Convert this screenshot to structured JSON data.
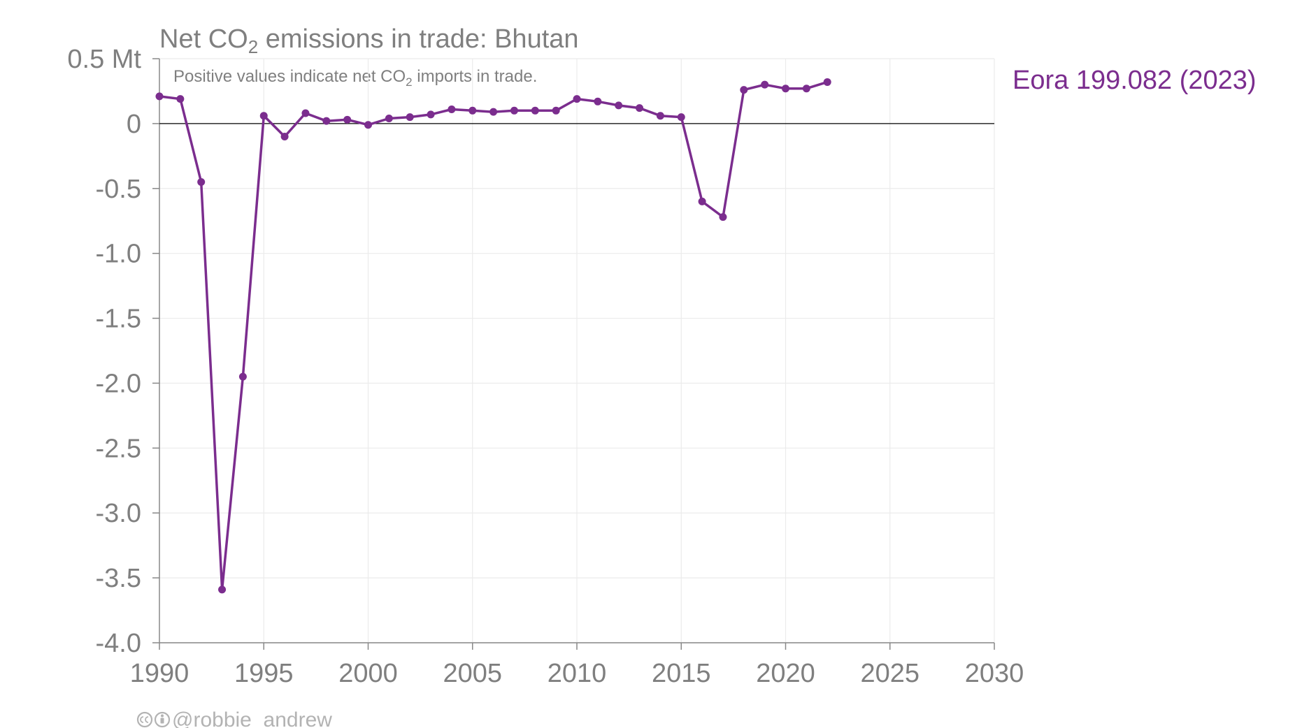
{
  "chart_data": {
    "type": "line",
    "title_prefix": "Net CO",
    "title_sub": "2",
    "title_suffix": " emissions in trade: Bhutan",
    "subtitle_prefix": "Positive values indicate net CO",
    "subtitle_sub": "2",
    "subtitle_suffix": " imports in trade.",
    "y_unit": "Mt",
    "ylim": [
      -4.0,
      0.5
    ],
    "yticks": [
      0.5,
      0,
      -0.5,
      -1.0,
      -1.5,
      -2.0,
      -2.5,
      -3.0,
      -3.5,
      -4.0
    ],
    "ytick_labels": [
      "0.5 Mt",
      "0",
      "-0.5",
      "-1.0",
      "-1.5",
      "-2.0",
      "-2.5",
      "-3.0",
      "-3.5",
      "-4.0"
    ],
    "xlim": [
      1990,
      2030
    ],
    "xticks": [
      1990,
      1995,
      2000,
      2005,
      2010,
      2015,
      2020,
      2025,
      2030
    ],
    "xtick_labels": [
      "1990",
      "1995",
      "2000",
      "2005",
      "2010",
      "2015",
      "2020",
      "2025",
      "2030"
    ],
    "grid": true,
    "series": [
      {
        "name": "Eora 199.082 (2023)",
        "color": "#7b2d8e",
        "x": [
          1990,
          1991,
          1992,
          1993,
          1994,
          1995,
          1996,
          1997,
          1998,
          1999,
          2000,
          2001,
          2002,
          2003,
          2004,
          2005,
          2006,
          2007,
          2008,
          2009,
          2010,
          2011,
          2012,
          2013,
          2014,
          2015,
          2016,
          2017,
          2018,
          2019,
          2020,
          2021,
          2022
        ],
        "y": [
          0.21,
          0.19,
          -0.45,
          -3.59,
          -1.95,
          0.06,
          -0.1,
          0.08,
          0.02,
          0.03,
          -0.01,
          0.04,
          0.05,
          0.07,
          0.11,
          0.1,
          0.09,
          0.1,
          0.1,
          0.1,
          0.19,
          0.17,
          0.14,
          0.12,
          0.06,
          0.05,
          -0.6,
          -0.72,
          0.26,
          0.3,
          0.27,
          0.27,
          0.32
        ]
      }
    ]
  },
  "credit": {
    "icons": [
      "creative-commons-icon",
      "attribution-icon"
    ],
    "handle": "@robbie_andrew"
  }
}
